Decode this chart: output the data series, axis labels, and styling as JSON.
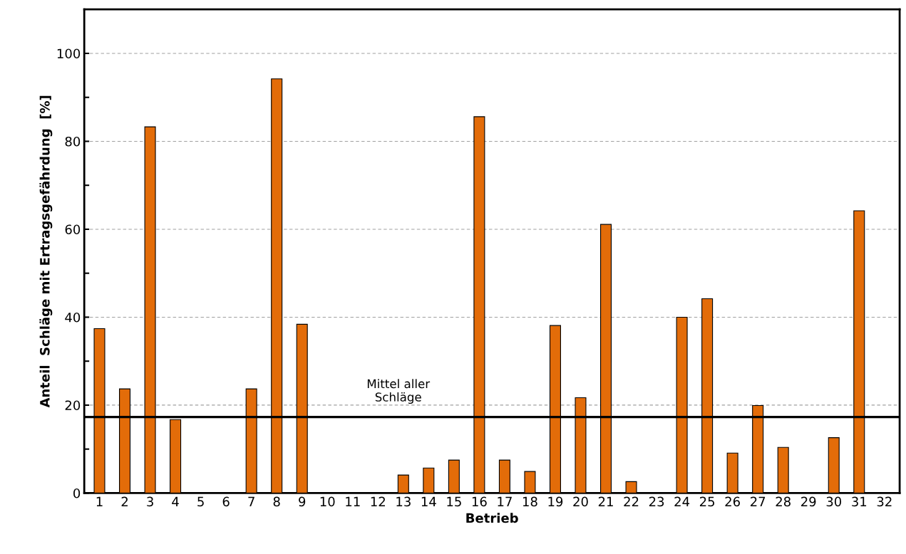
{
  "chart_data": {
    "type": "bar",
    "xlabel": "Betrieb",
    "ylabel": "Anteil  Schläge mit Ertragsgefährdung  [%]",
    "categories": [
      "1",
      "2",
      "3",
      "4",
      "5",
      "6",
      "7",
      "8",
      "9",
      "10",
      "11",
      "12",
      "13",
      "14",
      "15",
      "16",
      "17",
      "18",
      "19",
      "20",
      "21",
      "22",
      "23",
      "24",
      "25",
      "26",
      "27",
      "28",
      "29",
      "30",
      "31",
      "32"
    ],
    "values": [
      37.4,
      23.7,
      83.3,
      16.7,
      0,
      0,
      23.7,
      94.2,
      38.4,
      0,
      0,
      0,
      4.1,
      5.7,
      7.5,
      85.6,
      7.5,
      4.9,
      38.1,
      21.7,
      61.1,
      2.6,
      0,
      40.0,
      44.2,
      9.1,
      19.9,
      10.4,
      0,
      12.6,
      64.2,
      0
    ],
    "color": "#e36c09",
    "ylim": [
      0,
      110
    ],
    "yticks": [
      0,
      {
        "value": 10,
        "label": null
      },
      20,
      {
        "value": 30,
        "label": null
      },
      40,
      {
        "value": 50,
        "label": null
      },
      60,
      {
        "value": 70,
        "label": null
      },
      80,
      {
        "value": 90,
        "label": null
      },
      100
    ],
    "grid": "y",
    "ref_lines": [
      {
        "axis": "y",
        "value": 17.3,
        "label": "Mittel aller\nSchläge",
        "color": "#000000",
        "line_style": "solid"
      }
    ]
  }
}
